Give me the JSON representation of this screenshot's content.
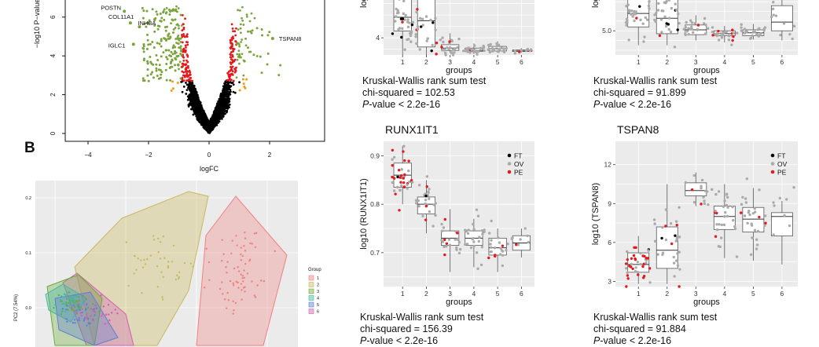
{
  "figure": {
    "panel_b_label": "B",
    "volcano": {
      "xlabel": "logFC",
      "ylabel": "−log10 P−value",
      "x_ticks": [
        "−4",
        "−2",
        "0",
        "2"
      ],
      "y_ticks": [
        "0",
        "2",
        "4",
        "6"
      ],
      "genes": [
        "POSTN",
        "COL11A1",
        "INHBA",
        "IGLC1",
        "TSPAN8"
      ]
    },
    "pca": {
      "ylabel": "PC2 (7.54%)",
      "y_ticks": [
        "0.0",
        "0.1",
        "0.2"
      ],
      "legend_title": "Group",
      "legend": [
        "1",
        "2",
        "3",
        "4",
        "5",
        "6"
      ]
    },
    "boxplots": {
      "top_left": {
        "y_axis": "log",
        "y_ticks": [
          "4"
        ],
        "x_ticks": [
          "1",
          "2",
          "3",
          "4",
          "5",
          "6"
        ],
        "xlabel": "groups",
        "test": "Kruskal-Wallis rank sum test",
        "chi": "chi-squared = 102.53",
        "p_label": "P",
        "p_rest": "-value < 2.2e-16"
      },
      "top_right": {
        "y_axis": "log",
        "y_ticks": [
          "5.0"
        ],
        "x_ticks": [
          "1",
          "2",
          "3",
          "4",
          "5",
          "6"
        ],
        "xlabel": "groups",
        "test": "Kruskal-Wallis rank sum test",
        "chi": "chi-squared = 91.899",
        "p_label": "P",
        "p_rest": "-value < 2.2e-16"
      },
      "bottom_left": {
        "title": "RUNX1IT1",
        "ylabel": "log10 (RUNX1IT1)",
        "y_ticks": [
          "0.7",
          "0.8",
          "0.9"
        ],
        "x_ticks": [
          "1",
          "2",
          "3",
          "4",
          "5",
          "6"
        ],
        "xlabel": "groups",
        "legend": [
          "FT",
          "OV",
          "PE"
        ],
        "test": "Kruskal-Wallis rank sum test",
        "chi": "chi-squared = 156.39",
        "p_label": "P",
        "p_rest": "-value < 2.2e-16"
      },
      "bottom_right": {
        "title": "TSPAN8",
        "ylabel": "log10 (TSPAN8)",
        "y_ticks": [
          "3",
          "6",
          "9",
          "12"
        ],
        "x_ticks": [
          "1",
          "2",
          "3",
          "4",
          "5",
          "6"
        ],
        "xlabel": "groups",
        "legend": [
          "FT",
          "OV",
          "PE"
        ],
        "test": "Kruskal-Wallis rank sum test",
        "chi": "chi-squared = 91.884",
        "p_label": "P",
        "p_rest": "-value < 2.2e-16"
      }
    },
    "colors": {
      "up": "#e31a1c",
      "down_green": "#7aa33a",
      "ns": "#000000",
      "orange": "#f39c12",
      "grey_pt": "#aaaaaa",
      "panel_bg": "#ebebeb",
      "pca_groups": [
        "#f08080",
        "#c8b85a",
        "#6aaa3a",
        "#40b8a0",
        "#5f7fd0",
        "#d060b0"
      ],
      "legend_pts": [
        "#000000",
        "#aaaaaa",
        "#e31a1c"
      ]
    }
  },
  "chart_data": [
    {
      "type": "scatter",
      "title": "",
      "xlabel": "logFC",
      "ylabel": "−log10 P−value",
      "xlim": [
        -5,
        3.5
      ],
      "ylim": [
        0,
        7
      ],
      "labeled_points": [
        {
          "name": "POSTN",
          "x": -2.8,
          "y": 6.3
        },
        {
          "name": "COL11A1",
          "x": -2.6,
          "y": 5.7
        },
        {
          "name": "INHBA",
          "x": -2.3,
          "y": 5.5
        },
        {
          "name": "IGLC1",
          "x": -2.5,
          "y": 4.6
        },
        {
          "name": "TSPAN8",
          "x": 2.1,
          "y": 4.9
        }
      ]
    },
    {
      "type": "scatter",
      "title": "",
      "ylabel": "PC2 (7.54%)",
      "legend_title": "Group",
      "series": [
        {
          "name": "1"
        },
        {
          "name": "2"
        },
        {
          "name": "3"
        },
        {
          "name": "4"
        },
        {
          "name": "5"
        },
        {
          "name": "6"
        }
      ]
    },
    {
      "type": "box",
      "title": "",
      "xlabel": "groups",
      "categories": [
        "1",
        "2",
        "3",
        "4",
        "5",
        "6"
      ],
      "stat": "chi-squared = 102.53"
    },
    {
      "type": "box",
      "title": "",
      "xlabel": "groups",
      "categories": [
        "1",
        "2",
        "3",
        "4",
        "5",
        "6"
      ],
      "stat": "chi-squared = 91.899"
    },
    {
      "type": "box",
      "title": "RUNX1IT1",
      "xlabel": "groups",
      "ylabel": "log10 (RUNX1IT1)",
      "categories": [
        "1",
        "2",
        "3",
        "4",
        "5",
        "6"
      ],
      "ylim": [
        0.63,
        0.93
      ],
      "medians": [
        0.86,
        0.8,
        0.73,
        0.73,
        0.71,
        0.72
      ],
      "series": [
        {
          "name": "FT"
        },
        {
          "name": "OV"
        },
        {
          "name": "PE"
        }
      ],
      "stat": "chi-squared = 156.39"
    },
    {
      "type": "box",
      "title": "TSPAN8",
      "xlabel": "groups",
      "ylabel": "log10 (TSPAN8)",
      "categories": [
        "1",
        "2",
        "3",
        "4",
        "5",
        "6"
      ],
      "ylim": [
        2.6,
        13.8
      ],
      "medians": [
        4.3,
        5.4,
        10.0,
        8.0,
        7.8,
        8.0
      ],
      "series": [
        {
          "name": "FT"
        },
        {
          "name": "OV"
        },
        {
          "name": "PE"
        }
      ],
      "stat": "chi-squared = 91.884"
    }
  ]
}
